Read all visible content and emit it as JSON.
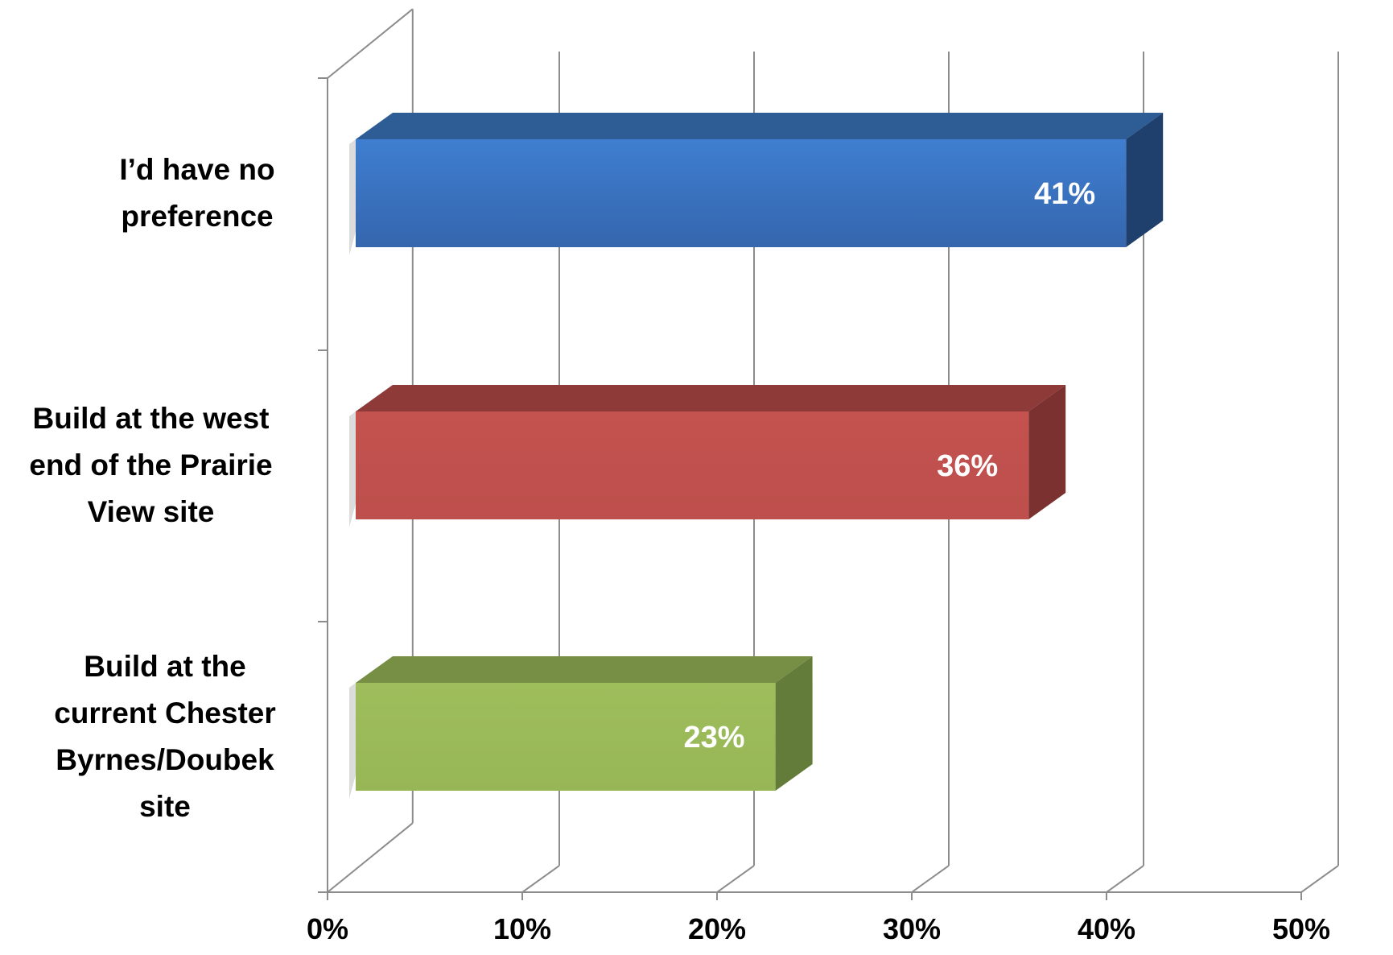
{
  "chart_data": {
    "type": "bar",
    "orientation": "horizontal",
    "style": "3d",
    "categories": [
      "I’d have no preference",
      "Build at the west end of the Prairie View site",
      "Build at the current Chester Byrnes/Doubek site"
    ],
    "category_lines": [
      [
        "I’d have no",
        "preference"
      ],
      [
        "Build at the west",
        "end of the Prairie",
        "View site"
      ],
      [
        "Build at the",
        "current Chester",
        "Byrnes/Doubek",
        "site"
      ]
    ],
    "values": [
      41,
      36,
      23
    ],
    "data_labels": [
      "41%",
      "36%",
      "23%"
    ],
    "colors": [
      "#3F7CCB",
      "#C0504D",
      "#9BBB59"
    ],
    "xlim": [
      0,
      50
    ],
    "xticks": [
      0,
      10,
      20,
      30,
      40,
      50
    ],
    "xtick_labels": [
      "0%",
      "10%",
      "20%",
      "30%",
      "40%",
      "50%"
    ],
    "grid": true,
    "legend": "none"
  }
}
